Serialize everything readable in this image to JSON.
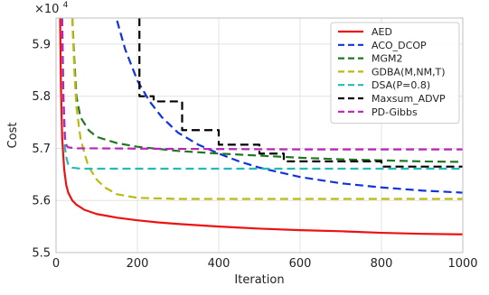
{
  "chart_data": {
    "type": "line",
    "xlabel": "Iteration",
    "ylabel": "Cost",
    "y_multiplier_label": "×10",
    "y_multiplier_exp": "4",
    "xlim": [
      0,
      1000
    ],
    "ylim": [
      5.5,
      5.95
    ],
    "x_ticks": [
      0,
      200,
      400,
      600,
      800,
      1000
    ],
    "x_tick_labels": [
      "0",
      "200",
      "400",
      "600",
      "800",
      "1000"
    ],
    "y_ticks": [
      5.5,
      5.6,
      5.7,
      5.8,
      5.9
    ],
    "y_tick_labels": [
      "5.5",
      "5.6",
      "5.7",
      "5.8",
      "5.9"
    ],
    "grid": true,
    "legend_position": "top-right",
    "series": [
      {
        "name": "AED",
        "color": "#ee1111",
        "dash": "solid",
        "points": [
          [
            10,
            5.95
          ],
          [
            12,
            5.82
          ],
          [
            15,
            5.72
          ],
          [
            20,
            5.66
          ],
          [
            25,
            5.63
          ],
          [
            30,
            5.615
          ],
          [
            40,
            5.6
          ],
          [
            50,
            5.592
          ],
          [
            70,
            5.582
          ],
          [
            100,
            5.574
          ],
          [
            150,
            5.567
          ],
          [
            200,
            5.562
          ],
          [
            250,
            5.558
          ],
          [
            300,
            5.555
          ],
          [
            400,
            5.55
          ],
          [
            500,
            5.546
          ],
          [
            600,
            5.543
          ],
          [
            700,
            5.541
          ],
          [
            800,
            5.538
          ],
          [
            900,
            5.536
          ],
          [
            1000,
            5.535
          ]
        ]
      },
      {
        "name": "ACO_DCOP",
        "color": "#1133dd",
        "dash": "dashed",
        "points": [
          [
            150,
            5.945
          ],
          [
            170,
            5.89
          ],
          [
            200,
            5.83
          ],
          [
            230,
            5.79
          ],
          [
            260,
            5.76
          ],
          [
            300,
            5.73
          ],
          [
            350,
            5.707
          ],
          [
            400,
            5.69
          ],
          [
            450,
            5.675
          ],
          [
            500,
            5.663
          ],
          [
            600,
            5.645
          ],
          [
            700,
            5.633
          ],
          [
            800,
            5.625
          ],
          [
            900,
            5.619
          ],
          [
            1000,
            5.615
          ]
        ]
      },
      {
        "name": "MGM2",
        "color": "#227722",
        "dash": "dashed",
        "points": [
          [
            40,
            5.95
          ],
          [
            45,
            5.87
          ],
          [
            50,
            5.8
          ],
          [
            60,
            5.76
          ],
          [
            80,
            5.735
          ],
          [
            100,
            5.722
          ],
          [
            150,
            5.71
          ],
          [
            200,
            5.703
          ],
          [
            300,
            5.695
          ],
          [
            400,
            5.69
          ],
          [
            500,
            5.686
          ],
          [
            600,
            5.682
          ],
          [
            700,
            5.679
          ],
          [
            800,
            5.677
          ],
          [
            900,
            5.675
          ],
          [
            1000,
            5.674
          ]
        ]
      },
      {
        "name": "GDBA(M,NM,T)",
        "color": "#bbbb11",
        "dash": "dashed",
        "points": [
          [
            40,
            5.95
          ],
          [
            45,
            5.85
          ],
          [
            50,
            5.78
          ],
          [
            60,
            5.72
          ],
          [
            70,
            5.69
          ],
          [
            80,
            5.665
          ],
          [
            100,
            5.64
          ],
          [
            120,
            5.625
          ],
          [
            150,
            5.612
          ],
          [
            200,
            5.605
          ],
          [
            300,
            5.603
          ],
          [
            400,
            5.603
          ],
          [
            600,
            5.603
          ],
          [
            800,
            5.603
          ],
          [
            1000,
            5.603
          ]
        ]
      },
      {
        "name": "DSA(P=0.8)",
        "color": "#22bbbb",
        "dash": "dashed",
        "points": [
          [
            15,
            5.95
          ],
          [
            18,
            5.8
          ],
          [
            22,
            5.7
          ],
          [
            26,
            5.68
          ],
          [
            30,
            5.669
          ],
          [
            40,
            5.663
          ],
          [
            60,
            5.661
          ],
          [
            100,
            5.661
          ],
          [
            300,
            5.661
          ],
          [
            600,
            5.661
          ],
          [
            1000,
            5.661
          ]
        ]
      },
      {
        "name": "Maxsum_ADVP",
        "color": "#000000",
        "dash": "dashed",
        "points": [
          [
            205,
            5.95
          ],
          [
            205,
            5.8
          ],
          [
            240,
            5.8
          ],
          [
            240,
            5.79
          ],
          [
            310,
            5.79
          ],
          [
            310,
            5.735
          ],
          [
            400,
            5.735
          ],
          [
            400,
            5.707
          ],
          [
            500,
            5.707
          ],
          [
            500,
            5.69
          ],
          [
            560,
            5.69
          ],
          [
            560,
            5.675
          ],
          [
            800,
            5.675
          ],
          [
            800,
            5.665
          ],
          [
            1000,
            5.665
          ]
        ]
      },
      {
        "name": "PD-Gibbs",
        "color": "#bb22bb",
        "dash": "dashed",
        "points": [
          [
            15,
            5.95
          ],
          [
            18,
            5.8
          ],
          [
            22,
            5.72
          ],
          [
            26,
            5.705
          ],
          [
            30,
            5.702
          ],
          [
            50,
            5.7
          ],
          [
            100,
            5.7
          ],
          [
            300,
            5.699
          ],
          [
            600,
            5.698
          ],
          [
            1000,
            5.698
          ]
        ]
      }
    ]
  }
}
